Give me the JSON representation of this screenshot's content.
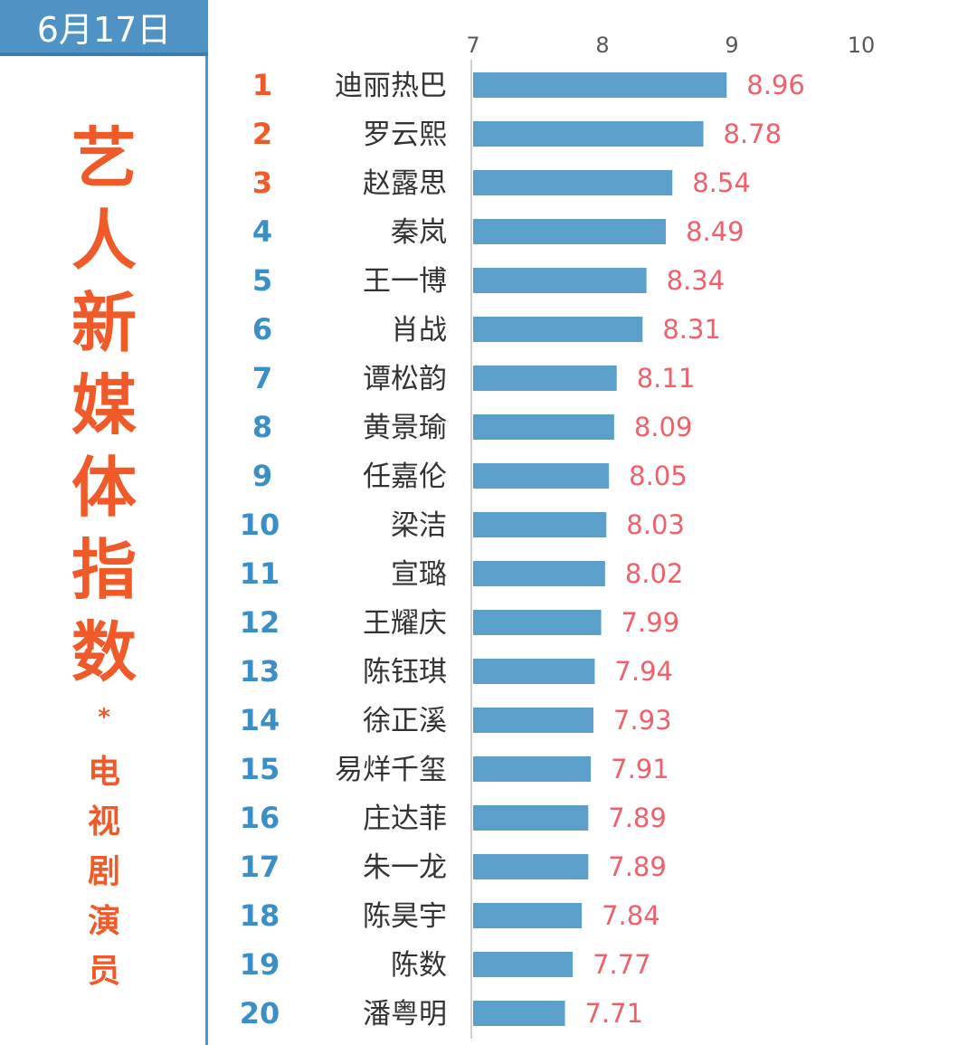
{
  "date": "6月17日",
  "title_chars": [
    "艺",
    "人",
    "新",
    "媒",
    "体",
    "指",
    "数"
  ],
  "title_separator": "*",
  "subtitle_chars": [
    "电",
    "视",
    "剧",
    "演",
    "员"
  ],
  "colors": {
    "bar": "#5b9fcb",
    "value_label": "#f0606a",
    "rank_top3": "#f05a28",
    "rank_other": "#3a8fc6",
    "title": "#f05a28",
    "header": "#4e93c4"
  },
  "chart_data": {
    "type": "bar",
    "orientation": "horizontal",
    "title": "",
    "xlabel": "",
    "ylabel": "",
    "xlim": [
      7,
      10
    ],
    "x_ticks": [
      "7",
      "8",
      "9",
      "10"
    ],
    "ranks": [
      "1",
      "2",
      "3",
      "4",
      "5",
      "6",
      "7",
      "8",
      "9",
      "10",
      "11",
      "12",
      "13",
      "14",
      "15",
      "16",
      "17",
      "18",
      "19",
      "20"
    ],
    "categories": [
      "迪丽热巴",
      "罗云熙",
      "赵露思",
      "秦岚",
      "王一博",
      "肖战",
      "谭松韵",
      "黄景瑜",
      "任嘉伦",
      "梁洁",
      "宣璐",
      "王耀庆",
      "陈钰琪",
      "徐正溪",
      "易烊千玺",
      "庄达菲",
      "朱一龙",
      "陈昊宇",
      "陈数",
      "潘粤明"
    ],
    "values": [
      8.96,
      8.78,
      8.54,
      8.49,
      8.34,
      8.31,
      8.11,
      8.09,
      8.05,
      8.03,
      8.02,
      7.99,
      7.94,
      7.93,
      7.91,
      7.89,
      7.89,
      7.84,
      7.77,
      7.71
    ],
    "value_labels": [
      "8.96",
      "8.78",
      "8.54",
      "8.49",
      "8.34",
      "8.31",
      "8.11",
      "8.09",
      "8.05",
      "8.03",
      "8.02",
      "7.99",
      "7.94",
      "7.93",
      "7.91",
      "7.89",
      "7.89",
      "7.84",
      "7.77",
      "7.71"
    ],
    "grid": false,
    "legend": "none"
  }
}
